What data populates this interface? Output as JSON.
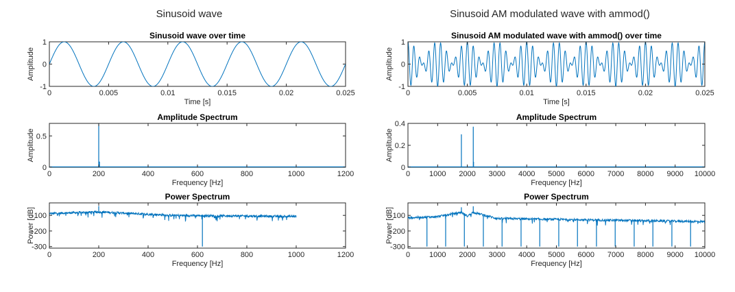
{
  "figure": {
    "left_title": "Sinusoid wave",
    "right_title": "Sinusoid AM modulated wave with ammod()"
  },
  "chart_data": [
    {
      "type": "line",
      "title": "Sinusoid wave over time",
      "xlabel": "Time [s]",
      "ylabel": "Amplitude",
      "xlim": [
        0,
        0.025
      ],
      "ylim": [
        -1,
        1
      ],
      "xticks": [
        0,
        0.005,
        0.01,
        0.015,
        0.02,
        0.025
      ],
      "xtick_labels": [
        "0",
        "0.005",
        "0.01",
        "0.015",
        "0.02",
        "0.025"
      ],
      "yticks": [
        -1,
        0,
        1
      ],
      "ytick_labels": [
        "-1",
        "0",
        "1"
      ],
      "signal": {
        "kind": "sine",
        "amplitude": 1,
        "frequency_hz": 200
      },
      "color": "#0072bd"
    },
    {
      "type": "line",
      "title": "Sinusoid AM modulated wave with ammod() over time",
      "xlabel": "Time [s]",
      "ylabel": "Amplitude",
      "xlim": [
        0,
        0.025
      ],
      "ylim": [
        -1,
        1
      ],
      "xticks": [
        0,
        0.005,
        0.01,
        0.015,
        0.02,
        0.025
      ],
      "xtick_labels": [
        "0",
        "0.005",
        "0.01",
        "0.015",
        "0.02",
        "0.025"
      ],
      "yticks": [
        -1,
        0,
        1
      ],
      "ytick_labels": [
        "-1",
        "0",
        "1"
      ],
      "signal": {
        "kind": "am",
        "carrier_hz": 2000,
        "message_hz": 200,
        "amplitude": 1
      },
      "color": "#0072bd"
    },
    {
      "type": "bar",
      "title": "Amplitude Spectrum",
      "xlabel": "Frequency [Hz]",
      "ylabel": "Amplitude",
      "xlim": [
        0,
        1200
      ],
      "ylim": [
        0,
        0.7
      ],
      "xticks": [
        0,
        200,
        400,
        600,
        800,
        1000,
        1200
      ],
      "xtick_labels": [
        "0",
        "200",
        "400",
        "600",
        "800",
        "1000",
        "1200"
      ],
      "yticks": [
        0,
        0.5
      ],
      "ytick_labels": [
        "0",
        "0.5"
      ],
      "peaks": [
        {
          "x": 200,
          "y": 0.7
        },
        {
          "x": 203,
          "y": 0.09
        }
      ],
      "color": "#0072bd"
    },
    {
      "type": "bar",
      "title": "Amplitude Spectrum",
      "xlabel": "Frequency [Hz]",
      "ylabel": "Amplitude",
      "xlim": [
        0,
        10000
      ],
      "ylim": [
        0,
        0.4
      ],
      "xticks": [
        0,
        1000,
        2000,
        3000,
        4000,
        5000,
        6000,
        7000,
        8000,
        9000,
        10000
      ],
      "xtick_labels": [
        "0",
        "1000",
        "2000",
        "3000",
        "4000",
        "5000",
        "6000",
        "7000",
        "8000",
        "9000",
        "10000"
      ],
      "yticks": [
        0,
        0.2,
        0.4
      ],
      "ytick_labels": [
        "0",
        "0.2",
        "0.4"
      ],
      "peaks": [
        {
          "x": 1800,
          "y": 0.3
        },
        {
          "x": 2200,
          "y": 0.37
        },
        {
          "x": 2210,
          "y": 0.05
        }
      ],
      "color": "#0072bd"
    },
    {
      "type": "line",
      "title": "Power Spectrum",
      "xlabel": "Frequency [Hz]",
      "ylabel": "Power [dB]",
      "xlim": [
        0,
        1200
      ],
      "ylim": [
        -310,
        -20
      ],
      "xticks": [
        0,
        200,
        400,
        600,
        800,
        1000,
        1200
      ],
      "xtick_labels": [
        "0",
        "200",
        "400",
        "600",
        "800",
        "1000",
        "1200"
      ],
      "yticks": [
        -300,
        -200,
        -100
      ],
      "ytick_labels": [
        "-300",
        "-200",
        "-100"
      ],
      "data_extent": [
        0,
        1000
      ],
      "baseline": [
        {
          "x": 0,
          "y": -88
        },
        {
          "x": 200,
          "y": -78
        },
        {
          "x": 500,
          "y": -100
        },
        {
          "x": 1000,
          "y": -107
        }
      ],
      "peaks": [
        {
          "x": 200,
          "y": -40
        }
      ],
      "dips": [
        {
          "x": 620,
          "y": -300
        }
      ],
      "color": "#0072bd"
    },
    {
      "type": "line",
      "title": "Power Spectrum",
      "xlabel": "Frequency [Hz]",
      "ylabel": "Power [dB]",
      "xlim": [
        0,
        10000
      ],
      "ylim": [
        -310,
        -20
      ],
      "xticks": [
        0,
        1000,
        2000,
        3000,
        4000,
        5000,
        6000,
        7000,
        8000,
        9000,
        10000
      ],
      "xtick_labels": [
        "0",
        "1000",
        "2000",
        "3000",
        "4000",
        "5000",
        "6000",
        "7000",
        "8000",
        "9000",
        "10000"
      ],
      "yticks": [
        -300,
        -200,
        -100
      ],
      "ytick_labels": [
        "-300",
        "-200",
        "-100"
      ],
      "data_extent": [
        0,
        10000
      ],
      "baseline": [
        {
          "x": 0,
          "y": -115
        },
        {
          "x": 1000,
          "y": -108
        },
        {
          "x": 1800,
          "y": -80
        },
        {
          "x": 2000,
          "y": -105
        },
        {
          "x": 2200,
          "y": -80
        },
        {
          "x": 3000,
          "y": -120
        },
        {
          "x": 10000,
          "y": -140
        }
      ],
      "peaks": [
        {
          "x": 1800,
          "y": -48
        },
        {
          "x": 2200,
          "y": -42
        }
      ],
      "dips": [
        {
          "x": 640,
          "y": -300
        },
        {
          "x": 1270,
          "y": -300
        },
        {
          "x": 1900,
          "y": -300
        },
        {
          "x": 2540,
          "y": -300
        },
        {
          "x": 3170,
          "y": -300
        },
        {
          "x": 3810,
          "y": -300
        },
        {
          "x": 4440,
          "y": -300
        },
        {
          "x": 5080,
          "y": -300
        },
        {
          "x": 5710,
          "y": -300
        },
        {
          "x": 6350,
          "y": -300
        },
        {
          "x": 6980,
          "y": -300
        },
        {
          "x": 7620,
          "y": -300
        },
        {
          "x": 8250,
          "y": -300
        },
        {
          "x": 8890,
          "y": -300
        },
        {
          "x": 9520,
          "y": -300
        }
      ],
      "color": "#0072bd"
    }
  ]
}
